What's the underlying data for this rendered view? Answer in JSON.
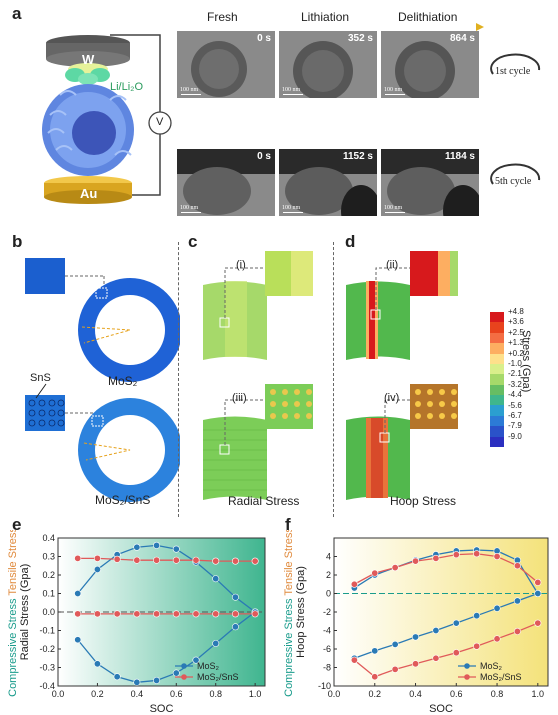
{
  "panels": {
    "a": "a",
    "b": "b",
    "c": "c",
    "d": "d",
    "e": "e",
    "f": "f"
  },
  "panel_a": {
    "headers": {
      "fresh": "Fresh",
      "lithiation": "Lithiation",
      "delithiation": "Delithiation"
    },
    "electrode_top": "W",
    "electrode_bottom": "Au",
    "lithium_source": "Li/Li₂O",
    "voltmeter": "V",
    "row1_times": [
      "0 s",
      "352 s",
      "864 s"
    ],
    "row2_times": [
      "0 s",
      "1152 s",
      "1184 s"
    ],
    "scale_label": "100 nm",
    "cycle1": "1st cycle",
    "cycle5": "5th cycle"
  },
  "panel_b": {
    "label_sns": "SnS",
    "label_mos2": "MoS₂",
    "label_composite": "MoS₂/SnS"
  },
  "panel_c": {
    "inset1": "(i)",
    "inset3": "(iii)",
    "title": "Radial Stress"
  },
  "panel_d": {
    "inset2": "(ii)",
    "inset4": "(iv)",
    "title": "Hoop Stress"
  },
  "colorbar": {
    "title": "Stress (Gpa)",
    "ticks": [
      "+4.8",
      "+3.6",
      "+2.5",
      "+1.3",
      "+0.2",
      "-1.0",
      "-2.1",
      "-3.2",
      "-4.4",
      "-5.6",
      "-6.7",
      "-7.9",
      "-9.0"
    ],
    "colors": [
      "#d7191c",
      "#e8431d",
      "#f46d43",
      "#fdae61",
      "#fee08b",
      "#d9ef8b",
      "#a6d96a",
      "#66bd63",
      "#3fb68c",
      "#2b9fd0",
      "#2c7bd6",
      "#2a52c9",
      "#2b2fc0"
    ]
  },
  "chart_data": [
    {
      "type": "line",
      "panel": "e",
      "xlabel": "SOC",
      "ylabel": "Radial Stress (Gpa)",
      "ylabel_compressive": "Compressive Stress",
      "ylabel_tensile": "Tensile Stress",
      "xlim": [
        0,
        1.05
      ],
      "ylim": [
        -0.4,
        0.4
      ],
      "xticks": [
        0.0,
        0.2,
        0.4,
        0.6,
        0.8,
        1.0
      ],
      "xtick_labels": [
        "0.0",
        "0.2",
        "0.4",
        "0.6",
        "0.8",
        "1.0"
      ],
      "yticks": [
        -0.4,
        -0.3,
        -0.2,
        -0.1,
        0.0,
        0.1,
        0.2,
        0.3,
        0.4
      ],
      "ytick_labels": [
        "-0.4",
        "-0.3",
        "-0.2",
        "-0.1",
        "0.0",
        "0.1",
        "0.2",
        "0.3",
        "0.4"
      ],
      "legend_position": "bottom-right",
      "series": [
        {
          "name": "MoS₂",
          "color": "#2a7ab5",
          "x": [
            0.1,
            0.2,
            0.3,
            0.4,
            0.5,
            0.6,
            0.7,
            0.8,
            0.9,
            1.0
          ],
          "y": [
            0.1,
            0.23,
            0.31,
            0.35,
            0.36,
            0.34,
            0.27,
            0.18,
            0.08,
            0.0
          ]
        },
        {
          "name": "MoS₂",
          "color": "#2a7ab5",
          "x": [
            0.1,
            0.2,
            0.3,
            0.4,
            0.5,
            0.6,
            0.7,
            0.8,
            0.9,
            1.0
          ],
          "y": [
            -0.15,
            -0.28,
            -0.35,
            -0.38,
            -0.37,
            -0.33,
            -0.26,
            -0.17,
            -0.08,
            0.0
          ]
        },
        {
          "name": "MoS₂/SnS",
          "color": "#e05a5a",
          "x": [
            0.1,
            0.2,
            0.3,
            0.4,
            0.5,
            0.6,
            0.7,
            0.8,
            0.9,
            1.0
          ],
          "y": [
            0.29,
            0.29,
            0.285,
            0.28,
            0.28,
            0.28,
            0.28,
            0.275,
            0.275,
            0.275
          ]
        },
        {
          "name": "MoS₂/SnS",
          "color": "#e05a5a",
          "x": [
            0.1,
            0.2,
            0.3,
            0.4,
            0.5,
            0.6,
            0.7,
            0.8,
            0.9,
            1.0
          ],
          "y": [
            -0.01,
            -0.01,
            -0.01,
            -0.01,
            -0.01,
            -0.01,
            -0.01,
            -0.01,
            -0.01,
            -0.01
          ]
        }
      ]
    },
    {
      "type": "line",
      "panel": "f",
      "xlabel": "SOC",
      "ylabel": "Hoop Stress (Gpa)",
      "ylabel_compressive": "Compressive Stress",
      "ylabel_tensile": "Tensile Stress",
      "xlim": [
        0,
        1.05
      ],
      "ylim": [
        -10,
        6
      ],
      "xticks": [
        0.0,
        0.2,
        0.4,
        0.6,
        0.8,
        1.0
      ],
      "xtick_labels": [
        "0.0",
        "0.2",
        "0.4",
        "0.6",
        "0.8",
        "1.0"
      ],
      "yticks": [
        -10,
        -8,
        -6,
        -4,
        -2,
        0,
        2,
        4
      ],
      "ytick_labels": [
        "-10",
        "-8",
        "-6",
        "-4",
        "-2",
        "0",
        "2",
        "4"
      ],
      "legend_position": "bottom-right",
      "series": [
        {
          "name": "MoS₂",
          "color": "#2a7ab5",
          "x": [
            0.1,
            0.2,
            0.3,
            0.4,
            0.5,
            0.6,
            0.7,
            0.8,
            0.9,
            1.0
          ],
          "y": [
            0.6,
            2.0,
            2.8,
            3.6,
            4.2,
            4.6,
            4.7,
            4.6,
            3.6,
            0.0
          ]
        },
        {
          "name": "MoS₂",
          "color": "#2a7ab5",
          "x": [
            0.1,
            0.2,
            0.3,
            0.4,
            0.5,
            0.6,
            0.7,
            0.8,
            0.9,
            1.0
          ],
          "y": [
            -7.0,
            -6.2,
            -5.5,
            -4.7,
            -4.0,
            -3.2,
            -2.4,
            -1.6,
            -0.8,
            0.0
          ]
        },
        {
          "name": "MoS₂/SnS",
          "color": "#e05a5a",
          "x": [
            0.1,
            0.2,
            0.3,
            0.4,
            0.5,
            0.6,
            0.7,
            0.8,
            0.9,
            1.0
          ],
          "y": [
            1.0,
            2.2,
            2.8,
            3.5,
            3.8,
            4.2,
            4.3,
            4.0,
            3.0,
            1.2
          ]
        },
        {
          "name": "MoS₂/SnS",
          "color": "#e05a5a",
          "x": [
            0.1,
            0.2,
            0.3,
            0.4,
            0.5,
            0.6,
            0.7,
            0.8,
            0.9,
            1.0
          ],
          "y": [
            -7.2,
            -9.0,
            -8.2,
            -7.6,
            -7.0,
            -6.4,
            -5.7,
            -4.9,
            -4.1,
            -3.2
          ]
        }
      ]
    }
  ]
}
